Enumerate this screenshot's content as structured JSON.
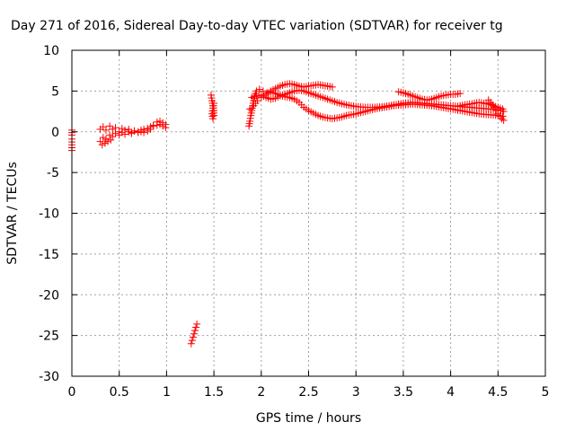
{
  "chart_data": {
    "type": "scatter",
    "title": "Day 271 of 2016, Sidereal Day-to-day VTEC variation (SDTVAR) for receiver tg",
    "xlabel": "GPS time / hours",
    "ylabel": "SDTVAR / TECUs",
    "xlim": [
      0,
      5
    ],
    "ylim": [
      -30,
      10
    ],
    "xticks": [
      0,
      0.5,
      1,
      1.5,
      2,
      2.5,
      3,
      3.5,
      4,
      4.5,
      5
    ],
    "yticks": [
      -30,
      -25,
      -20,
      -15,
      -10,
      -5,
      0,
      5,
      10
    ],
    "xtick_labels": [
      "0",
      "0.5",
      "1",
      "1.5",
      "2",
      "2.5",
      "3",
      "3.5",
      "4",
      "4.5",
      "5"
    ],
    "ytick_labels": [
      "-30",
      "-25",
      "-20",
      "-15",
      "-10",
      "-5",
      "0",
      "5",
      "10"
    ],
    "grid": true,
    "legend": "none",
    "marker": "plus",
    "color": "#ff0000",
    "series": [
      {
        "segments": [
          {
            "x": [
              0.0,
              0.0,
              0.0,
              0.0,
              0.0
            ],
            "y": [
              -2.3,
              -1.6,
              -0.9,
              -0.4,
              0.2
            ]
          },
          {
            "x": [
              0.3,
              0.33,
              0.36,
              0.4,
              0.43,
              0.46,
              0.5,
              0.53,
              0.56,
              0.6,
              0.63,
              0.66,
              0.7,
              0.73,
              0.76,
              0.8,
              0.83,
              0.86,
              0.9,
              0.93,
              0.96,
              0.99
            ],
            "y": [
              -1.2,
              -0.7,
              -0.9,
              -0.4,
              -0.6,
              -0.2,
              -0.4,
              -0.1,
              -0.3,
              0.0,
              -0.2,
              0.1,
              0.0,
              0.2,
              0.3,
              0.4,
              0.6,
              0.7,
              0.8,
              0.9,
              0.7,
              0.5
            ]
          },
          {
            "x": [
              0.3,
              0.33,
              0.36,
              0.4,
              0.43,
              0.46,
              0.5,
              0.53,
              0.56,
              0.6,
              0.63,
              0.66,
              0.7,
              0.73,
              0.76,
              0.8,
              0.83,
              0.86,
              0.9,
              0.93,
              0.96,
              0.99
            ],
            "y": [
              0.3,
              0.6,
              0.2,
              0.7,
              0.3,
              0.5,
              0.0,
              0.4,
              0.2,
              0.3,
              -0.1,
              0.1,
              -0.1,
              0.0,
              -0.1,
              0.1,
              0.3,
              0.8,
              1.2,
              1.3,
              1.1,
              0.9
            ]
          },
          {
            "x": [
              0.32,
              0.35,
              0.38,
              0.41
            ],
            "y": [
              -1.6,
              -1.4,
              -1.2,
              -1.0
            ]
          },
          {
            "x": [
              1.26,
              1.27,
              1.28,
              1.29,
              1.3,
              1.31,
              1.32
            ],
            "y": [
              -26.0,
              -25.6,
              -25.2,
              -24.8,
              -24.4,
              -24.0,
              -23.6
            ]
          },
          {
            "x": [
              1.47,
              1.48,
              1.49,
              1.5,
              1.5,
              1.49,
              1.48,
              1.49,
              1.5
            ],
            "y": [
              4.5,
              3.8,
              3.2,
              2.6,
              2.0,
              1.6,
              2.2,
              2.9,
              3.5
            ]
          },
          {
            "x": [
              1.87,
              1.88,
              1.89,
              1.9,
              1.91,
              1.92,
              1.93,
              1.95,
              1.98,
              2.02,
              2.06,
              2.1,
              2.15,
              2.2,
              2.25,
              2.3,
              2.35,
              2.4,
              2.45,
              2.5,
              2.55,
              2.6,
              2.65,
              2.7,
              2.75
            ],
            "y": [
              0.7,
              1.3,
              2.0,
              2.6,
              3.2,
              3.8,
              4.4,
              5.0,
              5.2,
              5.0,
              4.8,
              5.0,
              5.3,
              5.6,
              5.8,
              5.9,
              5.8,
              5.6,
              5.5,
              5.6,
              5.7,
              5.8,
              5.7,
              5.6,
              5.5
            ]
          },
          {
            "x": [
              1.88,
              1.92,
              1.96,
              2.0,
              2.05,
              2.1,
              2.15,
              2.2,
              2.25,
              2.3,
              2.35,
              2.4,
              2.45,
              2.5,
              2.55,
              2.6,
              2.65,
              2.7,
              2.75,
              2.8,
              2.85,
              2.9,
              2.95,
              3.0,
              3.1,
              3.2,
              3.3,
              3.4,
              3.5,
              3.6,
              3.7,
              3.8,
              3.9,
              4.0,
              4.1,
              4.2,
              4.3,
              4.4,
              4.5,
              4.55
            ],
            "y": [
              2.8,
              3.2,
              3.8,
              4.2,
              4.6,
              4.9,
              4.7,
              4.5,
              4.3,
              4.2,
              4.0,
              3.6,
              3.0,
              2.6,
              2.3,
              2.0,
              1.8,
              1.7,
              1.6,
              1.7,
              1.8,
              2.0,
              2.1,
              2.2,
              2.5,
              2.8,
              3.0,
              3.2,
              3.3,
              3.4,
              3.3,
              3.2,
              3.0,
              2.8,
              2.6,
              2.4,
              2.2,
              2.1,
              2.0,
              1.9
            ]
          },
          {
            "x": [
              1.9,
              1.95,
              2.0,
              2.05,
              2.1,
              2.15,
              2.2,
              2.25,
              2.3,
              2.35,
              2.4,
              2.45,
              2.5,
              2.55,
              2.6,
              2.65,
              2.7,
              2.8,
              2.9,
              3.0,
              3.1,
              3.2,
              3.3,
              3.4,
              3.5,
              3.6,
              3.7,
              3.8,
              3.9,
              4.0,
              4.1,
              4.2,
              4.3,
              4.4,
              4.5,
              4.56
            ],
            "y": [
              4.2,
              4.4,
              4.5,
              4.2,
              4.0,
              4.1,
              4.4,
              4.6,
              4.8,
              5.0,
              5.1,
              5.0,
              4.8,
              4.6,
              4.4,
              4.2,
              4.0,
              3.6,
              3.3,
              3.1,
              3.0,
              3.0,
              3.1,
              3.3,
              3.5,
              3.6,
              3.5,
              3.4,
              3.3,
              3.2,
              3.1,
              3.0,
              2.9,
              2.8,
              2.7,
              2.5
            ]
          },
          {
            "x": [
              3.45,
              3.5,
              3.55,
              3.6,
              3.65,
              3.7,
              3.75,
              3.8,
              3.85,
              3.9,
              3.95,
              4.0,
              4.05,
              4.1
            ],
            "y": [
              4.9,
              4.8,
              4.6,
              4.4,
              4.2,
              4.0,
              3.9,
              4.0,
              4.2,
              4.4,
              4.5,
              4.6,
              4.6,
              4.7
            ]
          },
          {
            "x": [
              4.1,
              4.15,
              4.2,
              4.25,
              4.3,
              4.35,
              4.4,
              4.45,
              4.5,
              4.55
            ],
            "y": [
              3.2,
              3.3,
              3.4,
              3.5,
              3.6,
              3.5,
              3.4,
              3.2,
              3.0,
              2.8
            ]
          },
          {
            "x": [
              4.4,
              4.42,
              4.44,
              4.46,
              4.48,
              4.5,
              4.52,
              4.54,
              4.56
            ],
            "y": [
              3.9,
              3.6,
              3.3,
              3.0,
              2.6,
              2.2,
              1.9,
              1.6,
              1.4
            ]
          }
        ]
      }
    ]
  }
}
